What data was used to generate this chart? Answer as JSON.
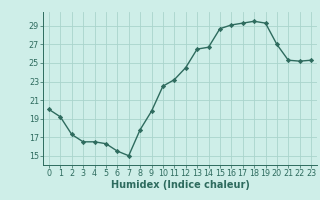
{
  "x": [
    0,
    1,
    2,
    3,
    4,
    5,
    6,
    7,
    8,
    9,
    10,
    11,
    12,
    13,
    14,
    15,
    16,
    17,
    18,
    19,
    20,
    21,
    22,
    23
  ],
  "y": [
    20.0,
    19.2,
    17.3,
    16.5,
    16.5,
    16.3,
    15.5,
    15.0,
    17.8,
    19.8,
    22.5,
    23.2,
    24.5,
    26.5,
    26.7,
    28.7,
    29.1,
    29.3,
    29.5,
    29.3,
    27.0,
    25.3,
    25.2,
    25.3
  ],
  "line_color": "#2e6b5e",
  "marker": "D",
  "marker_size": 2.2,
  "bg_color": "#ceeee8",
  "grid_color": "#aad4cc",
  "xlabel": "Humidex (Indice chaleur)",
  "ylim": [
    14.0,
    30.5
  ],
  "xlim": [
    -0.5,
    23.5
  ],
  "yticks": [
    15,
    17,
    19,
    21,
    23,
    25,
    27,
    29
  ],
  "xticks": [
    0,
    1,
    2,
    3,
    4,
    5,
    6,
    7,
    8,
    9,
    10,
    11,
    12,
    13,
    14,
    15,
    16,
    17,
    18,
    19,
    20,
    21,
    22,
    23
  ],
  "tick_label_fontsize": 5.8,
  "xlabel_fontsize": 7.0,
  "line_width": 1.0
}
